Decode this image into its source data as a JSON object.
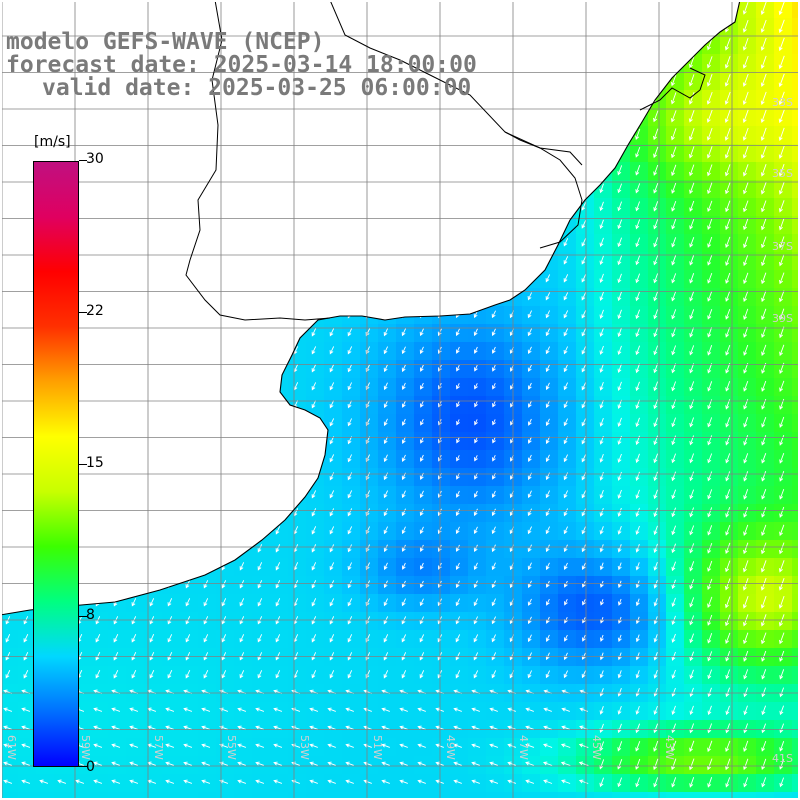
{
  "header": {
    "line1": "modelo GEFS-WAVE (NCEP)",
    "line2": "forecast date: 2025-03-14 18:00:00",
    "line3": "valid date: 2025-03-25 06:00:00"
  },
  "colorbar": {
    "unit": "[m/s]",
    "ticks": [
      "30",
      "22",
      "15",
      "8",
      "0"
    ],
    "tick_values": [
      30,
      22,
      15,
      8,
      0
    ],
    "colors": [
      "#0000ff",
      "#0070ff",
      "#00d8ff",
      "#00ff80",
      "#3cff00",
      "#c8ff00",
      "#ffff00",
      "#ffa000",
      "#ff3000",
      "#ff0000",
      "#e00060",
      "#c01080"
    ]
  },
  "map": {
    "lat_labels": [
      "33S",
      "35S",
      "37S",
      "39S",
      "41S"
    ],
    "lon_labels": [
      "61W",
      "59W",
      "57W",
      "55W",
      "53W",
      "51W",
      "49W",
      "47W",
      "45W",
      "43W"
    ],
    "grid_lines": true,
    "land_color": "#ffffff",
    "coast_color": "#000000",
    "arrow_color": "#ffffff"
  }
}
